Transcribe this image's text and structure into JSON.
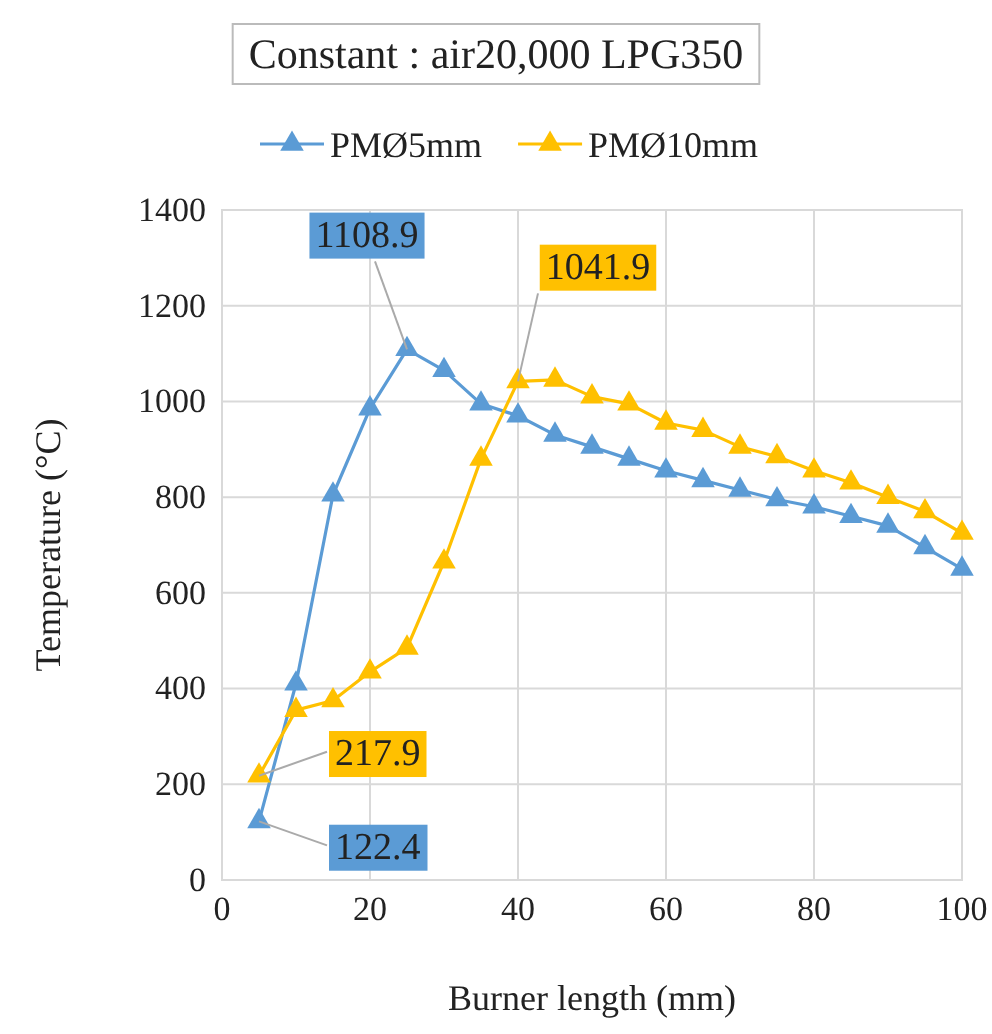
{
  "chart_data": {
    "type": "line",
    "title": "Constant : air20,000 LPG350",
    "xlabel": "Burner length (mm)",
    "ylabel": "Temperature (°C)",
    "x": [
      5,
      10,
      15,
      20,
      25,
      30,
      35,
      40,
      45,
      50,
      55,
      60,
      65,
      70,
      75,
      80,
      85,
      90,
      95,
      100
    ],
    "xlim": [
      0,
      100
    ],
    "xticks": [
      0,
      20,
      40,
      60,
      80,
      100
    ],
    "ylim": [
      0,
      1400
    ],
    "yticks": [
      0,
      200,
      400,
      600,
      800,
      1000,
      1200,
      1400
    ],
    "grid": true,
    "legend": "top",
    "marker": "triangle",
    "line_style": "solid",
    "series": [
      {
        "name": "PMØ5mm",
        "color": "#5b9bd5",
        "values": [
          122.4,
          410,
          805,
          985,
          1108.9,
          1065,
          995,
          970,
          930,
          905,
          880,
          855,
          835,
          815,
          795,
          780,
          760,
          740,
          695,
          650
        ],
        "value_labels": [
          "122.4",
          null,
          null,
          null,
          "1108.9",
          null,
          null,
          null,
          null,
          null,
          null,
          null,
          null,
          null,
          null,
          null,
          null,
          null,
          null,
          null
        ]
      },
      {
        "name": "PMØ10mm",
        "color": "#ffc000",
        "values": [
          217.9,
          355,
          375,
          435,
          485,
          665,
          880,
          1041.9,
          1045,
          1010,
          995,
          955,
          940,
          905,
          885,
          855,
          830,
          800,
          770,
          725
        ],
        "value_labels": [
          "217.9",
          null,
          null,
          null,
          null,
          null,
          null,
          "1041.9",
          null,
          null,
          null,
          null,
          null,
          null,
          null,
          null,
          null,
          null,
          null,
          null
        ]
      }
    ]
  }
}
